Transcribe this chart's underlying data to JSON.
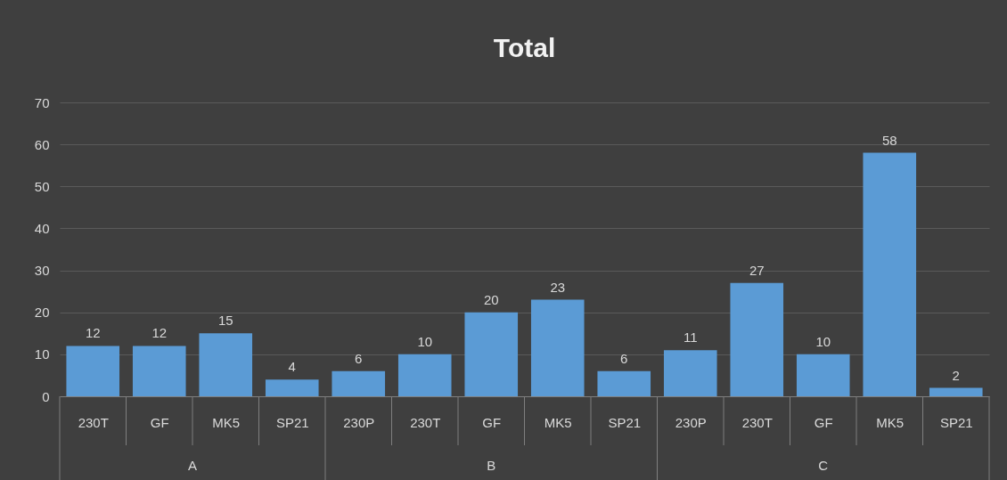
{
  "chart_data": {
    "type": "bar",
    "title": "Total",
    "categories": [
      "230T",
      "GF",
      "MK5",
      "SP21",
      "230P",
      "230T",
      "GF",
      "MK5",
      "SP21",
      "230P",
      "230T",
      "GF",
      "MK5",
      "SP21"
    ],
    "values": [
      12,
      12,
      15,
      4,
      6,
      10,
      20,
      23,
      6,
      11,
      27,
      10,
      58,
      2
    ],
    "color": "#5b9bd5",
    "annotations": [
      "A",
      "B",
      "C"
    ],
    "ylim": [
      0,
      70
    ],
    "yticks": [
      0,
      10,
      20,
      30,
      40,
      50,
      60,
      70
    ],
    "grid": "y",
    "data_labels": true
  }
}
